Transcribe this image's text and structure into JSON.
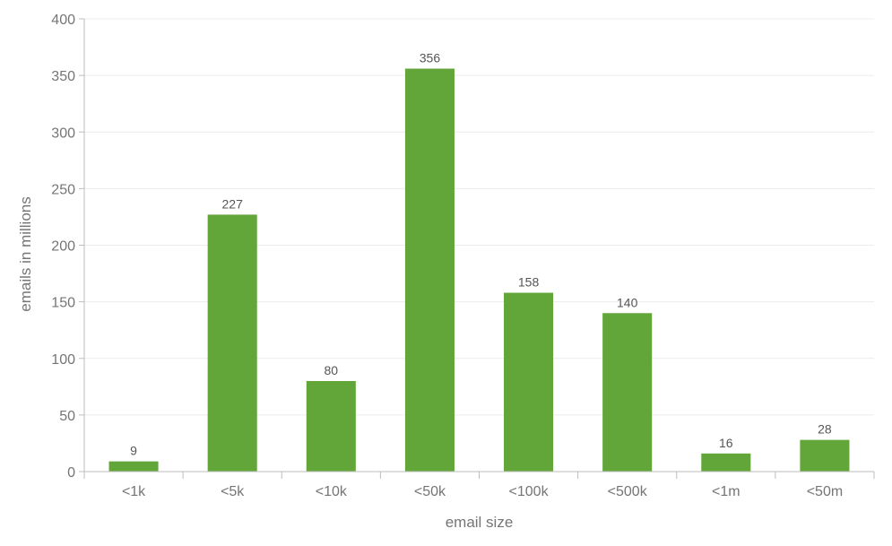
{
  "chart_data": {
    "type": "bar",
    "categories": [
      "<1k",
      "<5k",
      "<10k",
      "<50k",
      "<100k",
      "<500k",
      "<1m",
      "<50m"
    ],
    "values": [
      9,
      227,
      80,
      356,
      158,
      140,
      16,
      28
    ],
    "xlabel": "email size",
    "ylabel": "emails in millions",
    "ylim": [
      0,
      400
    ],
    "yticks": [
      0,
      50,
      100,
      150,
      200,
      250,
      300,
      350,
      400
    ],
    "grid": true,
    "bar_color": "#62a63a",
    "data_labels": true
  }
}
